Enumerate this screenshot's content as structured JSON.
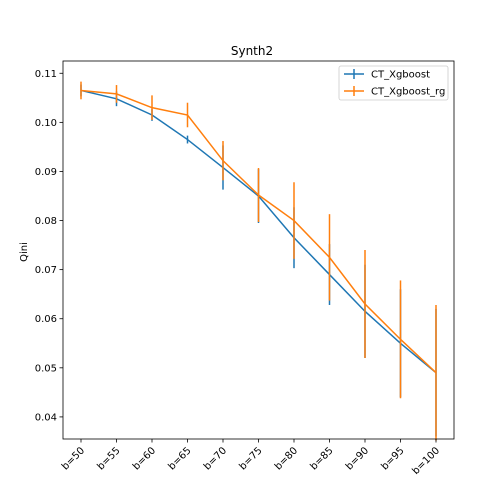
{
  "chart_data": {
    "type": "line",
    "title": "Synth2",
    "xlabel": "",
    "ylabel": "Qini",
    "categories": [
      "b=50",
      "b=55",
      "b=60",
      "b=65",
      "b=70",
      "b=75",
      "b=80",
      "b=85",
      "b=90",
      "b=95",
      "b=100"
    ],
    "ylim": [
      0.0355,
      0.1125
    ],
    "yticks": [
      0.04,
      0.05,
      0.06,
      0.07,
      0.08,
      0.09,
      0.1,
      0.11
    ],
    "ytick_labels": [
      "0.04",
      "0.05",
      "0.06",
      "0.07",
      "0.08",
      "0.09",
      "0.10",
      "0.11"
    ],
    "grid": false,
    "legend_position": "top-right",
    "series": [
      {
        "name": "CT_Xgboost",
        "color": "#1f77b4",
        "values": [
          0.1065,
          0.1048,
          0.1015,
          0.0965,
          0.0908,
          0.085,
          0.0765,
          0.069,
          0.0615,
          0.055,
          0.049
        ],
        "errors": [
          0.0012,
          0.0015,
          0.0012,
          0.0008,
          0.0045,
          0.0055,
          0.0062,
          0.0062,
          0.0095,
          0.011,
          0.013
        ]
      },
      {
        "name": "CT_Xgboost_rg",
        "color": "#ff7f0e",
        "values": [
          0.1065,
          0.1058,
          0.103,
          0.1015,
          0.0922,
          0.0852,
          0.08,
          0.0725,
          0.063,
          0.0558,
          0.049
        ],
        "errors": [
          0.0018,
          0.0018,
          0.0025,
          0.0025,
          0.004,
          0.0055,
          0.0078,
          0.0088,
          0.011,
          0.012,
          0.0138
        ]
      }
    ]
  }
}
